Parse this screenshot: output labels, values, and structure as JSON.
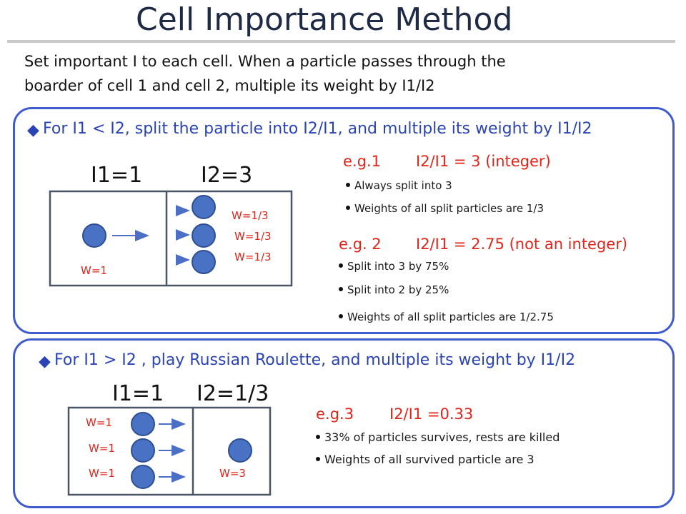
{
  "title": "Cell Importance Method",
  "intro": {
    "line1": "Set important I to each cell. When a particle passes through the",
    "line2": "boarder of cell 1 and cell 2, multiple its weight by I1/I2"
  },
  "panel1": {
    "heading": "For I1 < I2, split the particle into I2/I1, and multiple its weight by I1/I2",
    "i1_label": "I1=1",
    "i2_label": "I2=3",
    "w_in": "W=1",
    "w_out": [
      "W=1/3",
      "W=1/3",
      "W=1/3"
    ],
    "eg1": {
      "title": "e.g.1",
      "ratio": "I2/I1 = 3 (integer)",
      "bullets": [
        "Always split into 3",
        "Weights of all  split particles are 1/3"
      ]
    },
    "eg2": {
      "title": "e.g. 2",
      "ratio": "I2/I1 = 2.75 (not an integer)",
      "bullets": [
        "Split into 3 by 75%",
        "Split into 2 by 25%",
        "Weights of all  split particles are 1/2.75"
      ]
    }
  },
  "panel2": {
    "heading": "For I1 > I2 , play Russian Roulette, and multiple its weight by I1/I2",
    "i1_label": "I1=1",
    "i2_label": "I2=1/3",
    "w_in": [
      "W=1",
      "W=1",
      "W=1"
    ],
    "w_out": "W=3",
    "eg3": {
      "title": "e.g.3",
      "ratio": "I2/I1 =0.33",
      "bullets": [
        "33% of particles survives, rests are killed",
        "Weights of all survived particle are 3"
      ]
    }
  },
  "colors": {
    "panel_border": "#3f5bd0",
    "particle": "#4a72c4",
    "particle_stroke": "#2e4f8f",
    "example_red": "#e3241b",
    "heading_blue": "#2a44b6"
  }
}
